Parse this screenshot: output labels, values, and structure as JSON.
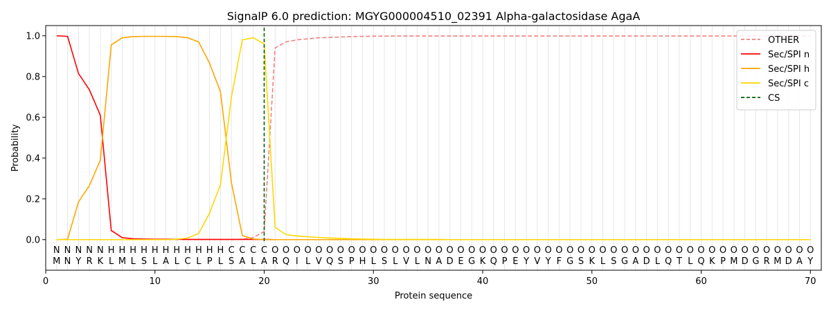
{
  "chart_data": {
    "type": "line",
    "title": "SignalP 6.0 prediction: MGYG000004510_02391 Alpha-galactosidase AgaA",
    "xlabel": "Protein sequence",
    "ylabel": "Probability",
    "xlim": [
      0,
      71
    ],
    "ylim": [
      -0.15,
      1.05
    ],
    "xticks": [
      0,
      10,
      20,
      30,
      40,
      50,
      60,
      70
    ],
    "yticks": [
      0.0,
      0.2,
      0.4,
      0.6,
      0.8,
      1.0
    ],
    "legend_position": "top-right",
    "sequence": [
      "M",
      "N",
      "Y",
      "R",
      "K",
      "L",
      "M",
      "L",
      "S",
      "L",
      "A",
      "L",
      "C",
      "L",
      "P",
      "L",
      "S",
      "A",
      "L",
      "A",
      "R",
      "Q",
      "I",
      "L",
      "V",
      "Q",
      "S",
      "P",
      "H",
      "L",
      "S",
      "L",
      "V",
      "L",
      "N",
      "A",
      "D",
      "E",
      "G",
      "K",
      "Q",
      "P",
      "E",
      "Y",
      "V",
      "Y",
      "F",
      "G",
      "S",
      "K",
      "L",
      "S",
      "G",
      "A",
      "D",
      "L",
      "Q",
      "T",
      "L",
      "Q",
      "K",
      "P",
      "M",
      "D",
      "G",
      "R",
      "M",
      "D",
      "A",
      "Y"
    ],
    "region_labels": [
      "N",
      "N",
      "N",
      "N",
      "N",
      "H",
      "H",
      "H",
      "H",
      "H",
      "H",
      "H",
      "H",
      "H",
      "H",
      "H",
      "C",
      "C",
      "C",
      "C",
      "O",
      "O",
      "O",
      "O",
      "O",
      "O",
      "O",
      "O",
      "O",
      "O",
      "O",
      "O",
      "O",
      "O",
      "O",
      "O",
      "O",
      "O",
      "O",
      "O",
      "O",
      "O",
      "O",
      "O",
      "O",
      "O",
      "O",
      "O",
      "O",
      "O",
      "O",
      "O",
      "O",
      "O",
      "O",
      "O",
      "O",
      "O",
      "O",
      "O",
      "O",
      "O",
      "O",
      "O",
      "O",
      "O",
      "O",
      "O",
      "O",
      "O"
    ],
    "region_colors": {
      "N": "#ff0000",
      "H": "#ffa500",
      "C": "#ffd700",
      "O": "#808080"
    },
    "cleavage_site": 20,
    "series": [
      {
        "name": "OTHER",
        "color": "#f08080",
        "dashed": true,
        "values": [
          0,
          0,
          0,
          0,
          0,
          0,
          0,
          0,
          0,
          0,
          0,
          0,
          0,
          0,
          0,
          0,
          0,
          0.002,
          0.01,
          0.04,
          0.94,
          0.97,
          0.98,
          0.985,
          0.99,
          0.992,
          0.994,
          0.996,
          0.997,
          0.998,
          0.998,
          0.999,
          0.999,
          0.999,
          0.999,
          0.999,
          0.999,
          0.999,
          0.999,
          0.999,
          0.999,
          0.999,
          0.999,
          0.999,
          0.999,
          0.999,
          0.999,
          0.999,
          0.999,
          0.999,
          0.999,
          0.999,
          0.999,
          0.999,
          0.999,
          0.999,
          0.999,
          0.999,
          0.999,
          0.999,
          0.999,
          0.999,
          0.999,
          0.999,
          0.999,
          0.999,
          0.999,
          0.999,
          0.999,
          0.999
        ]
      },
      {
        "name": "Sec/SPI n",
        "color": "#ff0000",
        "dashed": false,
        "values": [
          1.0,
          0.997,
          0.815,
          0.735,
          0.61,
          0.045,
          0.01,
          0.004,
          0.003,
          0.002,
          0.002,
          0.002,
          0.001,
          0.001,
          0.001,
          0.001,
          0.001,
          0.001,
          0.001,
          0.001,
          0,
          0,
          0,
          0,
          0,
          0,
          0,
          0,
          0,
          0,
          0,
          0,
          0,
          0,
          0,
          0,
          0,
          0,
          0,
          0,
          0,
          0,
          0,
          0,
          0,
          0,
          0,
          0,
          0,
          0,
          0,
          0,
          0,
          0,
          0,
          0,
          0,
          0,
          0,
          0,
          0,
          0,
          0,
          0,
          0,
          0,
          0,
          0,
          0,
          0
        ]
      },
      {
        "name": "Sec/SPI h",
        "color": "#ffa500",
        "dashed": false,
        "values": [
          0,
          0.002,
          0.185,
          0.265,
          0.39,
          0.955,
          0.99,
          0.996,
          0.997,
          0.997,
          0.997,
          0.996,
          0.99,
          0.97,
          0.865,
          0.725,
          0.28,
          0.02,
          0.003,
          0.001,
          0,
          0,
          0,
          0,
          0,
          0,
          0,
          0,
          0,
          0,
          0,
          0,
          0,
          0,
          0,
          0,
          0,
          0,
          0,
          0,
          0,
          0,
          0,
          0,
          0,
          0,
          0,
          0,
          0,
          0,
          0,
          0,
          0,
          0,
          0,
          0,
          0,
          0,
          0,
          0,
          0,
          0,
          0,
          0,
          0,
          0,
          0,
          0,
          0,
          0
        ]
      },
      {
        "name": "Sec/SPI c",
        "color": "#ffd700",
        "dashed": false,
        "values": [
          0,
          0,
          0,
          0,
          0,
          0,
          0,
          0,
          0,
          0,
          0,
          0.002,
          0.008,
          0.03,
          0.13,
          0.27,
          0.7,
          0.98,
          0.99,
          0.96,
          0.06,
          0.025,
          0.018,
          0.014,
          0.011,
          0.008,
          0.006,
          0.004,
          0.003,
          0.002,
          0.001,
          0.001,
          0.001,
          0.001,
          0.001,
          0.001,
          0,
          0,
          0,
          0,
          0,
          0,
          0,
          0,
          0,
          0,
          0,
          0,
          0,
          0,
          0,
          0,
          0,
          0,
          0,
          0,
          0,
          0,
          0,
          0,
          0,
          0,
          0,
          0,
          0,
          0,
          0,
          0,
          0,
          0
        ]
      }
    ],
    "legend": [
      {
        "name": "OTHER",
        "color": "#f08080",
        "dashed": true
      },
      {
        "name": "Sec/SPI n",
        "color": "#ff0000",
        "dashed": false
      },
      {
        "name": "Sec/SPI h",
        "color": "#ffa500",
        "dashed": false
      },
      {
        "name": "Sec/SPI c",
        "color": "#ffd700",
        "dashed": false
      },
      {
        "name": "CS",
        "color": "#006400",
        "dashed": true
      }
    ]
  }
}
